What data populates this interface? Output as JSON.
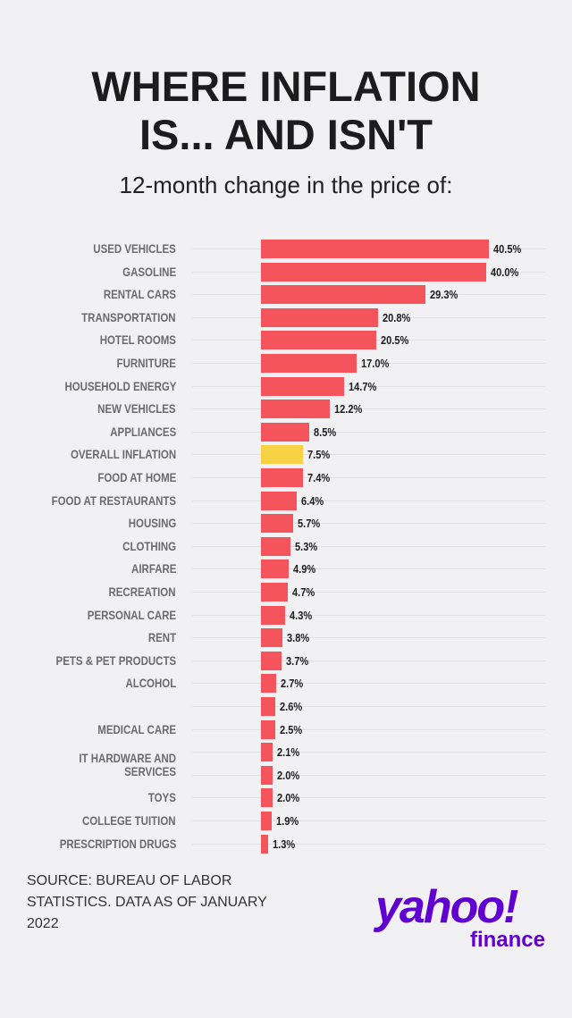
{
  "title_line1": "WHERE INFLATION",
  "title_line2": "IS... AND ISN'T",
  "subtitle": "12-month change in the price of:",
  "source": "SOURCE: BUREAU OF LABOR STATISTICS. DATA AS OF JANUARY 2022",
  "logo": {
    "brand": "yahoo!",
    "product": "finance",
    "color": "#6001d2"
  },
  "chart_data": {
    "type": "bar",
    "orientation": "horizontal",
    "title": "WHERE INFLATION IS... AND ISN'T",
    "subtitle": "12-month change in the price of:",
    "categories": [
      "USED VEHICLES",
      "GASOLINE",
      "RENTAL CARS",
      "TRANSPORTATION",
      "HOTEL ROOMS",
      "FURNITURE",
      "HOUSEHOLD ENERGY",
      "NEW VEHICLES",
      "APPLIANCES",
      "OVERALL INFLATION",
      "FOOD AT HOME",
      "FOOD AT RESTAURANTS",
      "HOUSING",
      "CLOTHING",
      "AIRFARE",
      "RECREATION",
      "PERSONAL CARE",
      "RENT",
      "PETS & PET PRODUCTS",
      "ALCOHOL",
      "",
      "MEDICAL CARE",
      "",
      "IT HARDWARE AND SERVICES",
      "TOYS",
      "COLLEGE TUITION",
      "PRESCRIPTION DRUGS"
    ],
    "values": [
      40.5,
      40.0,
      29.3,
      20.8,
      20.5,
      17.0,
      14.7,
      12.2,
      8.5,
      7.5,
      7.4,
      6.4,
      5.7,
      5.3,
      4.9,
      4.7,
      4.3,
      3.8,
      3.7,
      2.7,
      2.6,
      2.5,
      2.1,
      2.0,
      2.0,
      1.9,
      1.3
    ],
    "value_labels": [
      "40.5%",
      "40.0%",
      "29.3%",
      "20.8%",
      "20.5%",
      "17.0%",
      "14.7%",
      "12.2%",
      "8.5%",
      "7.5%",
      "7.4%",
      "6.4%",
      "5.7%",
      "5.3%",
      "4.9%",
      "4.7%",
      "4.3%",
      "3.8%",
      "3.7%",
      "2.7%",
      "2.6%",
      "2.5%",
      "2.1%",
      "2.0%",
      "2.0%",
      "1.9%",
      "1.3%"
    ],
    "highlight": "OVERALL INFLATION",
    "colors": {
      "bar": "#f4555d",
      "highlight": "#f6d244"
    },
    "xlim": [
      0,
      40.5
    ],
    "grid": true
  }
}
